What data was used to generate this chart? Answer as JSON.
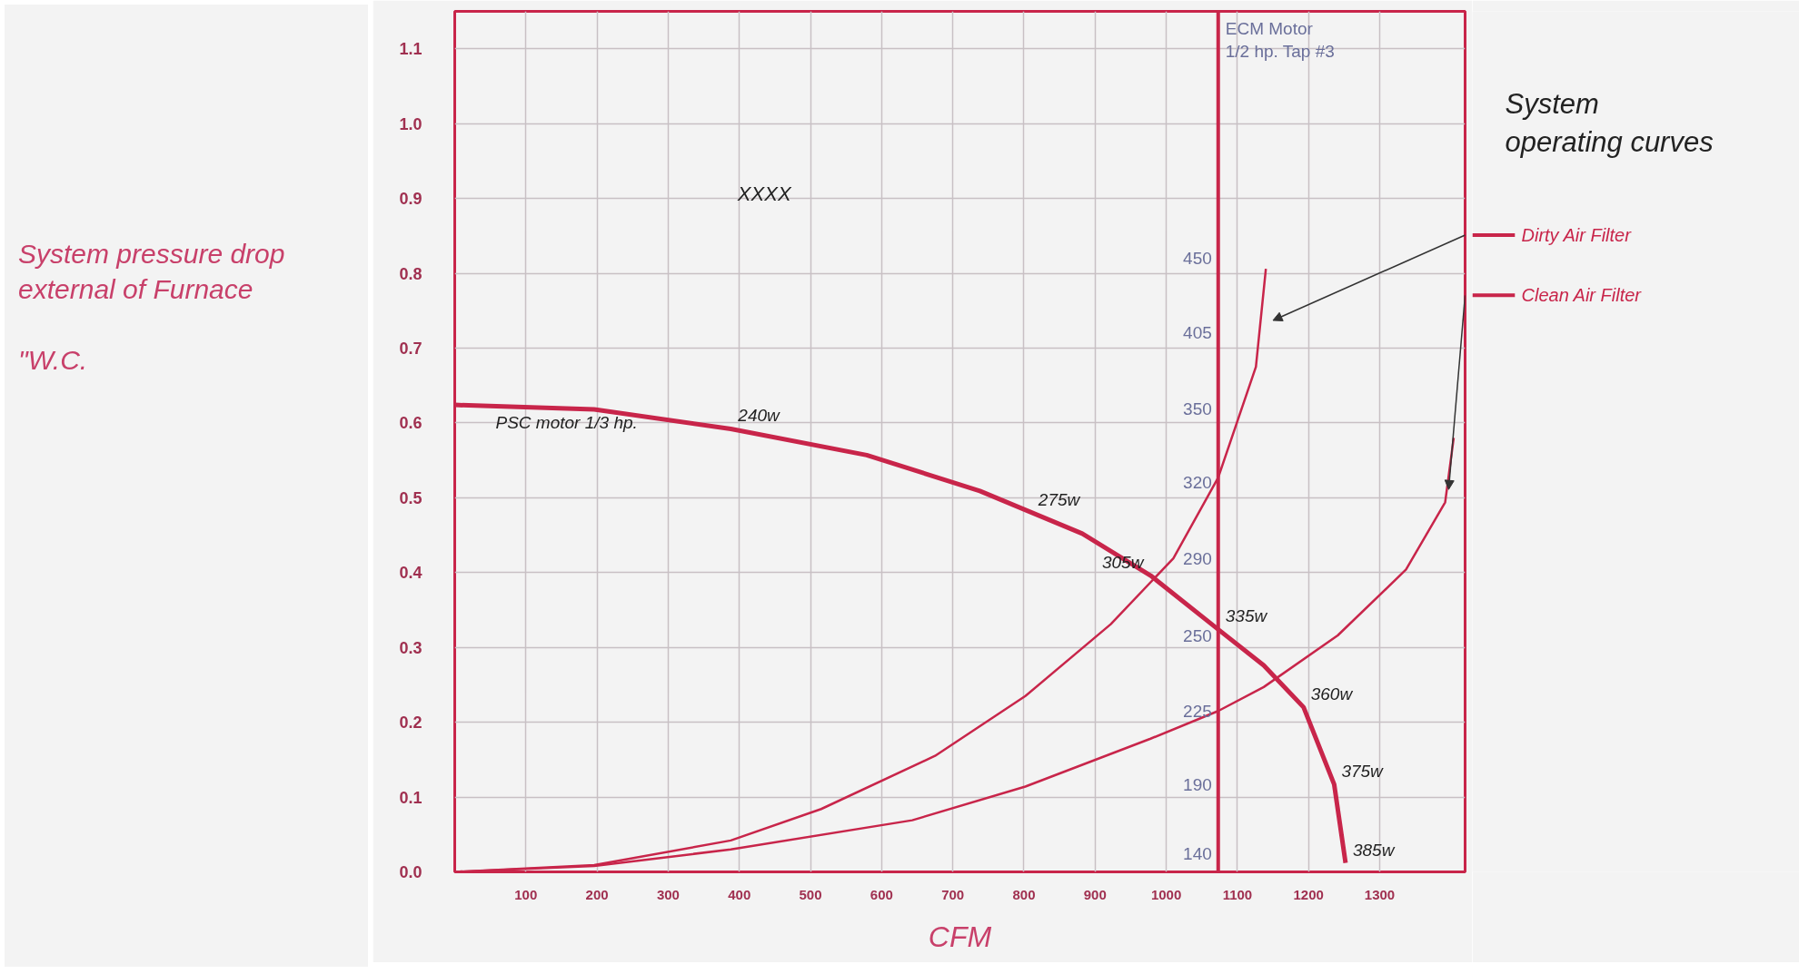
{
  "chart_data": {
    "type": "line",
    "title": "System\noperating curves",
    "xlabel": "CFM",
    "ylabel": "System pressure drop\nexternal of Furnace\n\n\"W.C.",
    "xlim": [
      0,
      1420
    ],
    "ylim": [
      0,
      1.15
    ],
    "xticks": [
      100,
      200,
      300,
      400,
      500,
      600,
      700,
      800,
      900,
      1000,
      1100,
      1200,
      1300
    ],
    "yticks": [
      {
        "value": 0,
        "label": "0.0"
      },
      0.1,
      0.2,
      0.3,
      0.4,
      0.5,
      0.6,
      0.7,
      0.8,
      0.9,
      {
        "value": 1.0,
        "label": "1.0"
      },
      1.1
    ],
    "grid": true,
    "legend": "right",
    "marker": "none",
    "line_style": "solid",
    "series": [
      {
        "name": "PSC motor 1/3 hp.",
        "color": "#c8254a",
        "x": [
          0,
          196,
          388,
          579,
          738,
          882,
          978,
          1073,
          1137,
          1193,
          1236,
          1252
        ],
        "values": [
          0.624,
          0.618,
          0.592,
          0.557,
          0.509,
          0.452,
          0.396,
          0.324,
          0.276,
          0.22,
          0.117,
          0.012
        ]
      },
      {
        "name": "Dirty Air Filter",
        "color": "#c8254a",
        "x": [
          0,
          196,
          388,
          515,
          675,
          802,
          922,
          1010,
          1073,
          1126,
          1140
        ],
        "values": [
          0,
          0.009,
          0.042,
          0.084,
          0.155,
          0.235,
          0.331,
          0.419,
          0.527,
          0.675,
          0.806
        ]
      },
      {
        "name": "Clean Air Filter",
        "color": "#c8254a",
        "x": [
          0,
          196,
          388,
          643,
          802,
          978,
          1073,
          1137,
          1241,
          1337,
          1392,
          1404
        ],
        "values": [
          0,
          0.008,
          0.03,
          0.069,
          0.114,
          0.178,
          0.215,
          0.247,
          0.316,
          0.404,
          0.494,
          0.58
        ]
      }
    ],
    "ref_lines": [
      {
        "axis": "x",
        "value": 1073,
        "label": "ECM Motor\n1/2 hp. Tap #3",
        "color": "#c8254a"
      }
    ],
    "annotations": [
      "XXXX",
      {
        "text": "240w",
        "x": 388,
        "y": 0.592
      },
      {
        "text": "275w",
        "x": 810,
        "y": 0.48
      },
      {
        "text": "305w",
        "x": 978,
        "y": 0.396
      },
      {
        "text": "335w",
        "x": 1073,
        "y": 0.324
      },
      {
        "text": "360w",
        "x": 1193,
        "y": 0.22
      },
      {
        "text": "375w",
        "x": 1236,
        "y": 0.117
      },
      {
        "text": "385w",
        "x": 1252,
        "y": 0.012
      },
      {
        "text": "140",
        "x": 1073,
        "y": 0.024
      },
      {
        "text": "190",
        "x": 1073,
        "y": 0.117
      },
      {
        "text": "225",
        "x": 1073,
        "y": 0.215
      },
      {
        "text": "250",
        "x": 1073,
        "y": 0.316
      },
      {
        "text": "290",
        "x": 1073,
        "y": 0.419
      },
      {
        "text": "320",
        "x": 1073,
        "y": 0.52
      },
      {
        "text": "350",
        "x": 1073,
        "y": 0.619
      },
      {
        "text": "405",
        "x": 1073,
        "y": 0.72
      },
      {
        "text": "450",
        "x": 1073,
        "y": 0.82
      }
    ]
  }
}
